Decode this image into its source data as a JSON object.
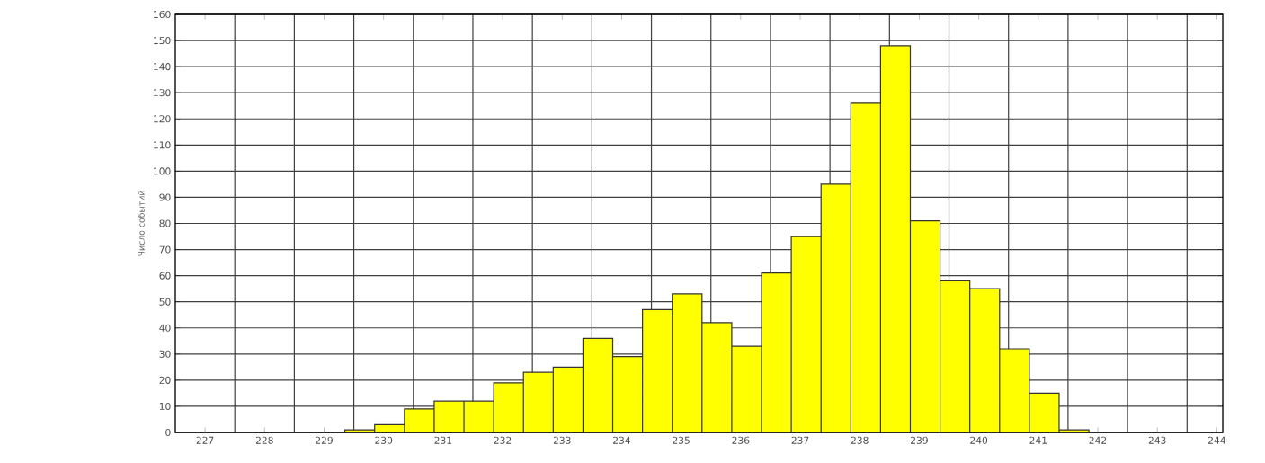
{
  "chart_data": {
    "type": "histogram",
    "ylabel": "Число событий",
    "bins": [
      228.35,
      228.85,
      229.35,
      229.85,
      230.35,
      230.85,
      231.35,
      231.85,
      232.35,
      232.85,
      233.35,
      233.85,
      234.35,
      234.85,
      235.35,
      235.85,
      236.35,
      236.85,
      237.35,
      237.85,
      238.35,
      238.85,
      239.35,
      239.85,
      240.35,
      240.85,
      241.35,
      241.85,
      242.35
    ],
    "values": [
      0,
      0,
      1,
      3,
      9,
      12,
      12,
      19,
      23,
      25,
      36,
      29,
      47,
      53,
      42,
      33,
      61,
      75,
      95,
      126,
      148,
      81,
      58,
      55,
      32,
      15,
      1,
      0
    ],
    "color": "#ffff00",
    "xlim": [
      226.5,
      244.1
    ],
    "xticks": [
      227,
      228,
      229,
      230,
      231,
      232,
      233,
      234,
      235,
      236,
      237,
      238,
      239,
      240,
      241,
      242,
      243,
      244
    ],
    "ylim": [
      0,
      160
    ],
    "yticks": [
      0,
      10,
      20,
      30,
      40,
      50,
      60,
      70,
      80,
      90,
      100,
      110,
      120,
      130,
      140,
      150,
      160
    ],
    "grid": true
  }
}
